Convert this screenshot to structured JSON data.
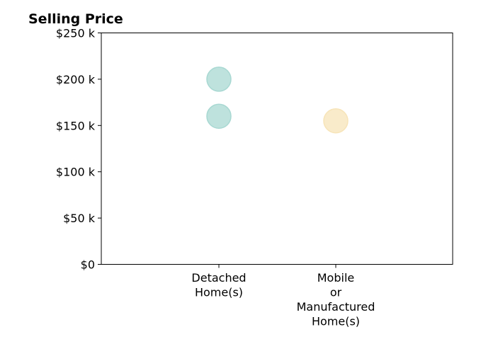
{
  "chart_data": {
    "type": "scatter",
    "title": "Selling Price",
    "xlabel": "",
    "ylabel": "",
    "categories": [
      [
        "Detached",
        "Home(s)"
      ],
      [
        "Mobile",
        "or",
        "Manufactured",
        "Home(s)"
      ]
    ],
    "y_ticks": [
      "$0",
      "$50 k",
      "$100 k",
      "$150 k",
      "$200 k",
      "$250 k"
    ],
    "ylim": [
      0,
      250000
    ],
    "grid": false,
    "points": [
      {
        "category": 0,
        "value": 200000,
        "color": "#a8d8d2"
      },
      {
        "category": 0,
        "value": 160000,
        "color": "#a8d8d2"
      },
      {
        "category": 1,
        "value": 155000,
        "color": "#f7e4b8"
      }
    ]
  }
}
